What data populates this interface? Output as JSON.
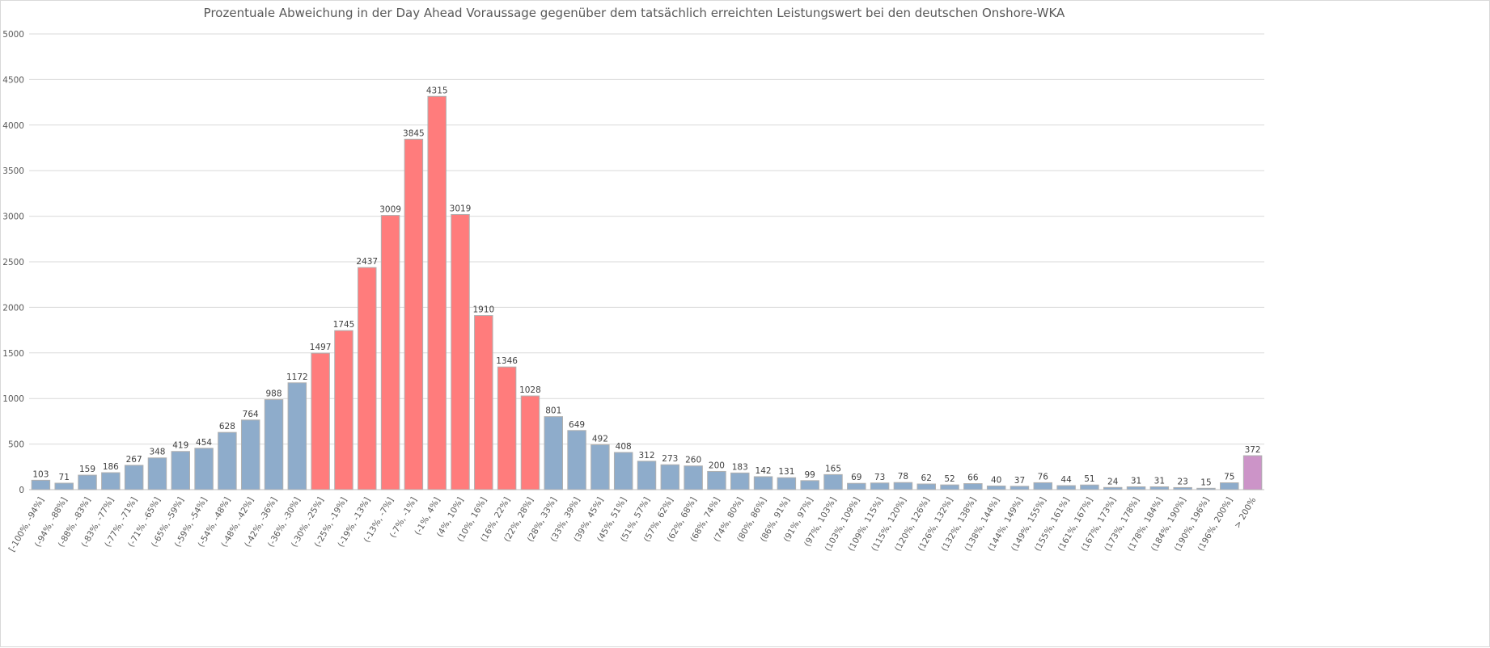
{
  "chart_data": {
    "type": "bar",
    "title": "Prozentuale Abweichung in der Day Ahead Voraussage gegenüber dem tatsächlich erreichten Leistungswert bei den deutschen Onshore-WKA",
    "xlabel": "",
    "ylabel": "",
    "ylim": [
      0,
      5000
    ],
    "yticks": [
      0,
      500,
      1000,
      1500,
      2000,
      2500,
      3000,
      3500,
      4000,
      4500,
      5000
    ],
    "grid": true,
    "legend": "none",
    "categories": [
      "[-100%, -94%]",
      "(-94%, -88%]",
      "(-88%, -83%]",
      "(-83%, -77%]",
      "(-77%, -71%]",
      "(-71%, -65%]",
      "(-65%, -59%]",
      "(-59%, -54%]",
      "(-54%, -48%]",
      "(-48%, -42%]",
      "(-42%, -36%]",
      "(-36%, -30%]",
      "(-30%, -25%]",
      "(-25%, -19%]",
      "(-19%, -13%]",
      "(-13%, -7%]",
      "(-7%, -1%]",
      "(-1%, 4%]",
      "(4%, 10%]",
      "(10%, 16%]",
      "(16%, 22%]",
      "(22%, 28%]",
      "(28%, 33%]",
      "(33%, 39%]",
      "(39%, 45%]",
      "(45%, 51%]",
      "(51%, 57%]",
      "(57%, 62%]",
      "(62%, 68%]",
      "(68%, 74%]",
      "(74%, 80%]",
      "(80%, 86%]",
      "(86%, 91%]",
      "(91%, 97%]",
      "(97%, 103%]",
      "(103%, 109%]",
      "(109%, 115%]",
      "(115%, 120%]",
      "(120%, 126%]",
      "(126%, 132%]",
      "(132%, 138%]",
      "(138%, 144%]",
      "(144%, 149%]",
      "(149%, 155%]",
      "(155%, 161%]",
      "(161%, 167%]",
      "(167%, 173%]",
      "(173%, 178%]",
      "(178%, 184%]",
      "(184%, 190%]",
      "(190%, 196%]",
      "(196%, 200%]",
      "> 200%"
    ],
    "values": [
      103,
      71,
      159,
      186,
      267,
      348,
      419,
      454,
      628,
      764,
      988,
      1172,
      1497,
      1745,
      2437,
      3009,
      3845,
      4315,
      3019,
      1910,
      1346,
      1028,
      801,
      649,
      492,
      408,
      312,
      273,
      260,
      200,
      183,
      142,
      131,
      99,
      165,
      69,
      73,
      78,
      62,
      52,
      66,
      40,
      37,
      76,
      44,
      51,
      24,
      31,
      31,
      23,
      15,
      75,
      372
    ],
    "bar_groups": [
      "base",
      "base",
      "base",
      "base",
      "base",
      "base",
      "base",
      "base",
      "base",
      "base",
      "base",
      "base",
      "near",
      "near",
      "near",
      "near",
      "near",
      "near",
      "near",
      "near",
      "near",
      "near",
      "base",
      "base",
      "base",
      "base",
      "base",
      "base",
      "base",
      "base",
      "base",
      "base",
      "base",
      "base",
      "base",
      "base",
      "base",
      "base",
      "base",
      "base",
      "base",
      "base",
      "base",
      "base",
      "base",
      "base",
      "base",
      "base",
      "base",
      "base",
      "base",
      "base",
      "outlier"
    ],
    "colors": {
      "base": "#8EACCB",
      "near": "#FF7C7C",
      "outlier": "#CC94C8"
    }
  }
}
